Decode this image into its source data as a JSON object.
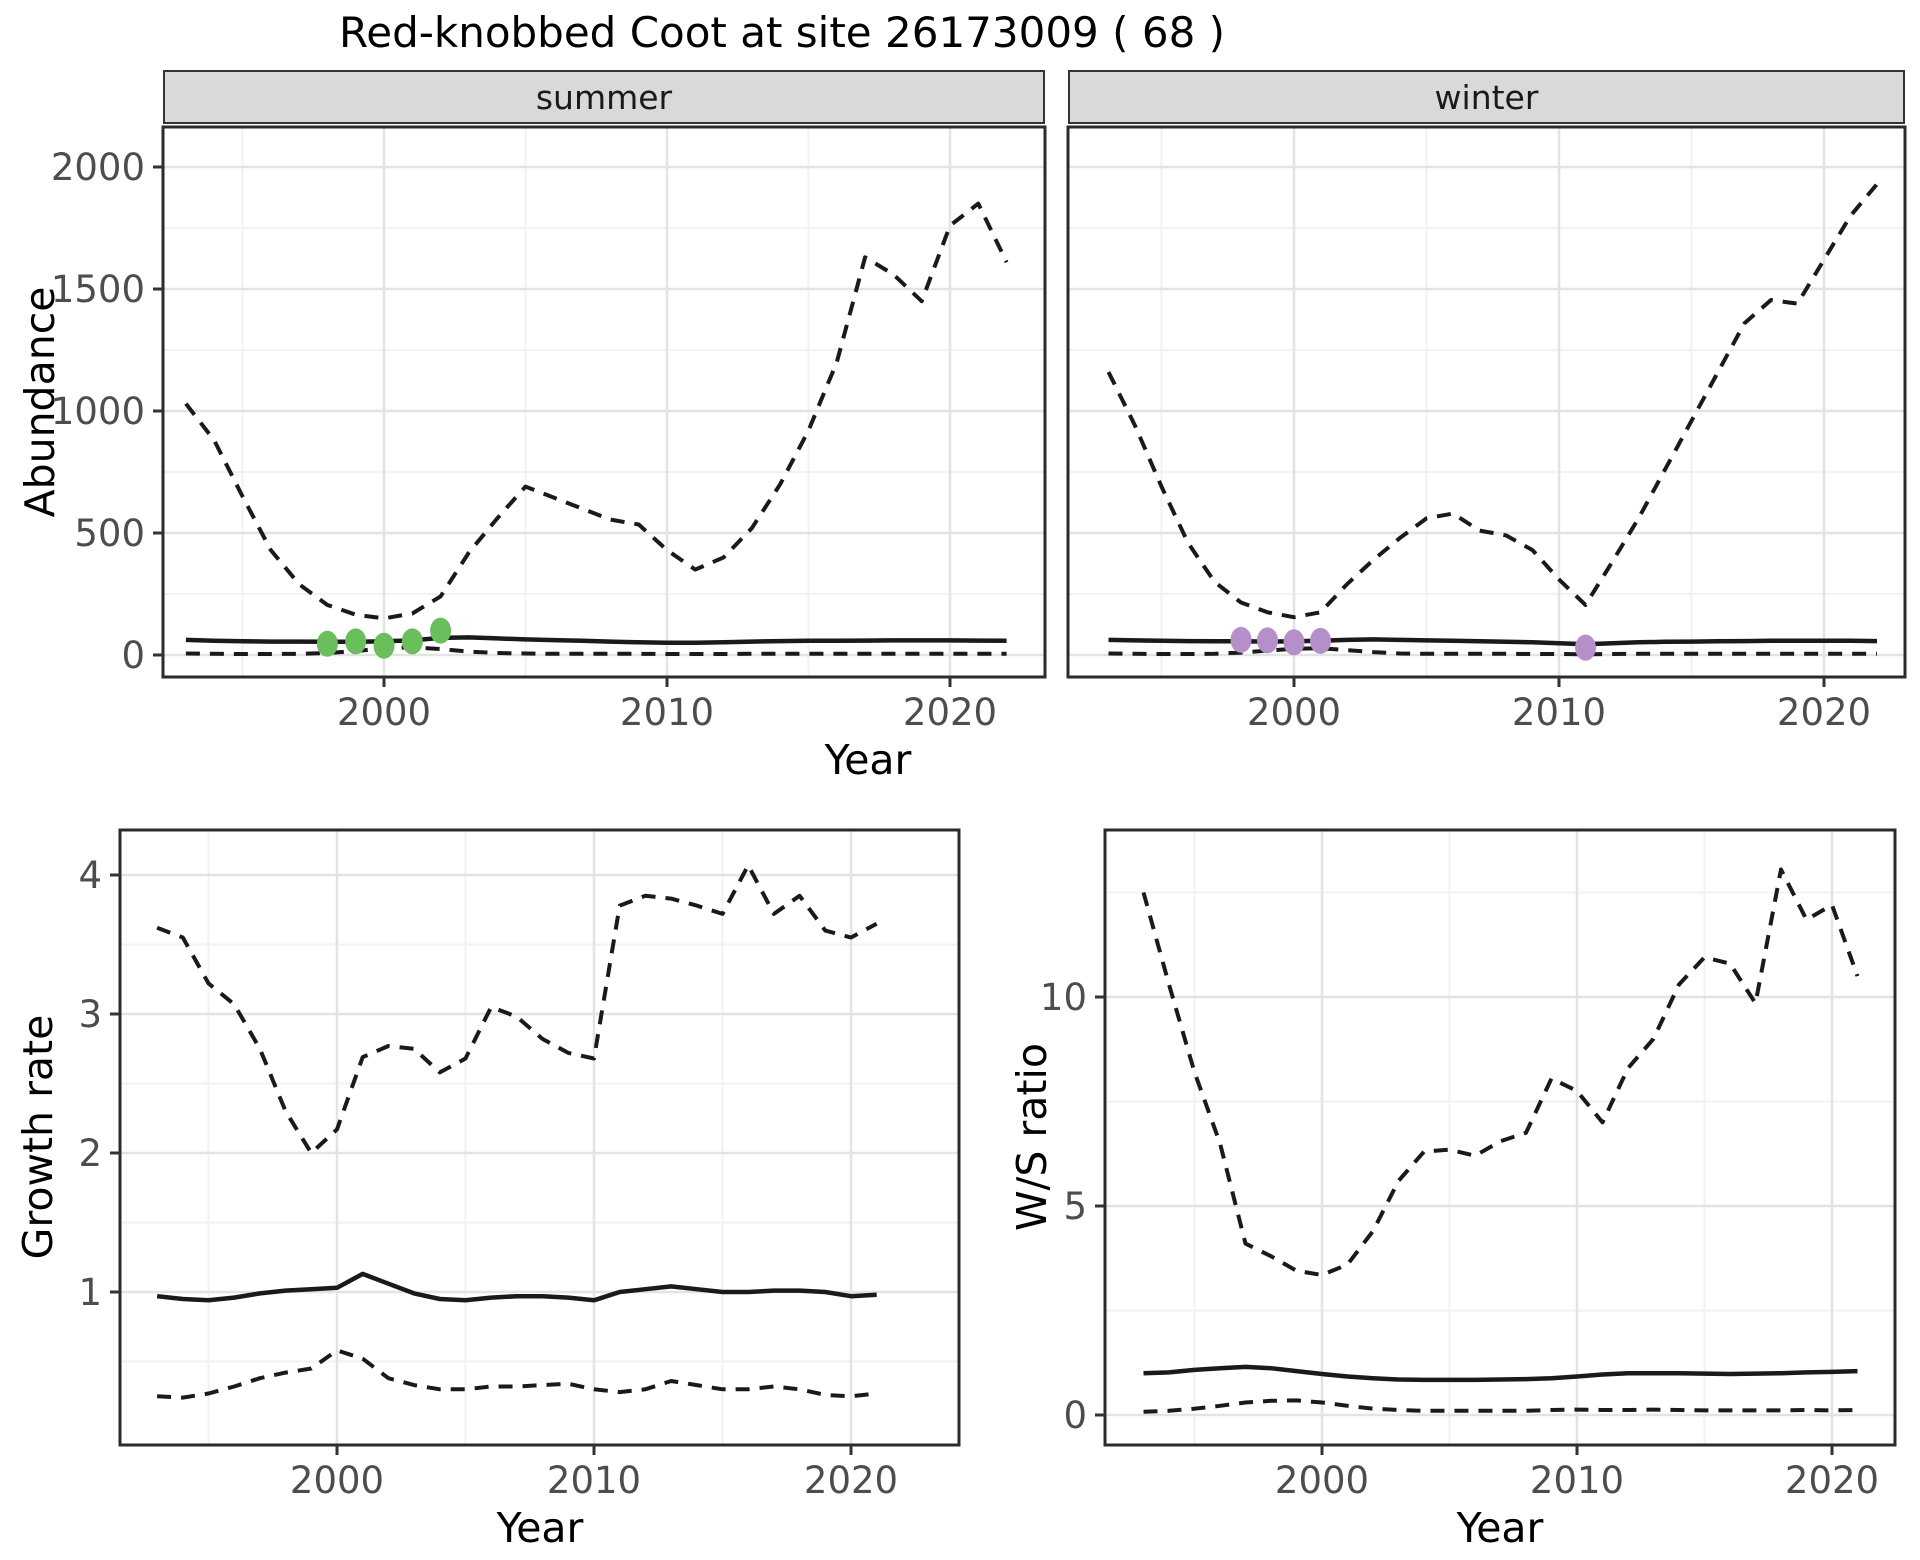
{
  "title": "Red-knobbed Coot at site 26173009 ( 68 )",
  "colors": {
    "summer_points": "#6BBE5C",
    "winter_points": "#B58FC9",
    "line": "#1a1a1a",
    "axis_text": "#4D4D4D",
    "strip_bg": "#D9D9D9",
    "panel_border": "#2B2B2B",
    "grid_major": "#E3E3E3",
    "grid_minor": "#F2F2F2"
  },
  "chart_data": [
    {
      "type": "line",
      "facet": "summer",
      "xlabel": "Year",
      "ylabel": "Abundance",
      "x": [
        1993,
        1994,
        1995,
        1996,
        1997,
        1998,
        1999,
        2000,
        2001,
        2002,
        2003,
        2004,
        2005,
        2006,
        2007,
        2008,
        2009,
        2010,
        2011,
        2012,
        2013,
        2014,
        2015,
        2016,
        2017,
        2018,
        2019,
        2020,
        2021,
        2022
      ],
      "series": [
        {
          "name": "upper-ci",
          "style": "dashed",
          "values": [
            1030,
            880,
            650,
            430,
            290,
            205,
            165,
            150,
            170,
            240,
            420,
            560,
            690,
            645,
            600,
            555,
            535,
            430,
            350,
            400,
            520,
            700,
            920,
            1200,
            1630,
            1560,
            1450,
            1760,
            1850,
            1610
          ]
        },
        {
          "name": "median",
          "style": "solid",
          "values": [
            62,
            58,
            56,
            55,
            55,
            54,
            54,
            56,
            60,
            70,
            72,
            68,
            64,
            61,
            58,
            55,
            52,
            50,
            50,
            52,
            55,
            57,
            58,
            58,
            59,
            60,
            60,
            60,
            59,
            58
          ]
        },
        {
          "name": "lower-ci",
          "style": "dashed",
          "values": [
            6,
            5,
            4,
            4,
            5,
            8,
            16,
            28,
            32,
            24,
            14,
            8,
            6,
            5,
            5,
            5,
            5,
            4,
            4,
            4,
            5,
            5,
            5,
            5,
            5,
            5,
            5,
            5,
            5,
            5
          ]
        }
      ],
      "points": {
        "name": "summer-observations",
        "color": "#6BBE5C",
        "x": [
          1998,
          1999,
          2000,
          2001,
          2002
        ],
        "y": [
          46,
          56,
          38,
          56,
          100
        ]
      },
      "xaxis": {
        "ticks": [
          2000,
          2010,
          2020
        ],
        "labels": [
          "2000",
          "2010",
          "2020"
        ],
        "minor": [
          1995,
          2005,
          2015
        ],
        "range": [
          1992.2,
          2023.4
        ]
      },
      "yaxis": {
        "ticks": [
          0,
          500,
          1000,
          1500,
          2000
        ],
        "labels": [
          "0",
          "500",
          "1000",
          "1500",
          "2000"
        ],
        "minor": [
          250,
          750,
          1250,
          1750
        ],
        "range": [
          -90,
          2165
        ]
      }
    },
    {
      "type": "line",
      "facet": "winter",
      "xlabel": "Year",
      "ylabel": "Abundance",
      "x": [
        1993,
        1994,
        1995,
        1996,
        1997,
        1998,
        1999,
        2000,
        2001,
        2002,
        2003,
        2004,
        2005,
        2006,
        2007,
        2008,
        2009,
        2010,
        2011,
        2012,
        2013,
        2014,
        2015,
        2016,
        2017,
        2018,
        2019,
        2020,
        2021,
        2022
      ],
      "series": [
        {
          "name": "upper-ci",
          "style": "dashed",
          "values": [
            1160,
            940,
            690,
            460,
            300,
            215,
            175,
            155,
            175,
            290,
            390,
            480,
            560,
            580,
            510,
            490,
            430,
            310,
            205,
            380,
            560,
            760,
            960,
            1160,
            1360,
            1455,
            1440,
            1620,
            1800,
            1930
          ]
        },
        {
          "name": "median",
          "style": "solid",
          "values": [
            62,
            60,
            58,
            57,
            56,
            56,
            55,
            56,
            58,
            62,
            64,
            62,
            60,
            58,
            56,
            54,
            52,
            48,
            44,
            48,
            52,
            54,
            55,
            56,
            57,
            58,
            58,
            58,
            58,
            57
          ]
        },
        {
          "name": "lower-ci",
          "style": "dashed",
          "values": [
            6,
            5,
            4,
            4,
            5,
            10,
            18,
            26,
            28,
            20,
            12,
            6,
            5,
            5,
            5,
            5,
            4,
            4,
            3,
            4,
            5,
            5,
            5,
            5,
            5,
            5,
            5,
            5,
            5,
            5
          ]
        }
      ],
      "points": {
        "name": "winter-observations",
        "color": "#B58FC9",
        "x": [
          1998,
          1999,
          2000,
          2001,
          2011
        ],
        "y": [
          62,
          60,
          52,
          58,
          30
        ]
      },
      "xaxis": {
        "ticks": [
          2000,
          2010,
          2020
        ],
        "labels": [
          "2000",
          "2010",
          "2020"
        ],
        "minor": [
          1995,
          2005,
          2015
        ],
        "range": [
          1991.5,
          2023.1
        ]
      },
      "yaxis": {
        "ticks": [
          0,
          500,
          1000,
          1500,
          2000
        ],
        "labels": [
          "0",
          "500",
          "1000",
          "1500",
          "2000"
        ],
        "minor": [
          250,
          750,
          1250,
          1750
        ],
        "range": [
          -90,
          2165
        ]
      }
    },
    {
      "type": "line",
      "facet": "",
      "xlabel": "Year",
      "ylabel": "Growth rate",
      "x": [
        1993,
        1994,
        1995,
        1996,
        1997,
        1998,
        1999,
        2000,
        2001,
        2002,
        2003,
        2004,
        2005,
        2006,
        2007,
        2008,
        2009,
        2010,
        2011,
        2012,
        2013,
        2014,
        2015,
        2016,
        2017,
        2018,
        2019,
        2020,
        2021
      ],
      "series": [
        {
          "name": "upper-ci",
          "style": "dashed",
          "values": [
            3.62,
            3.55,
            3.22,
            3.07,
            2.75,
            2.3,
            2.0,
            2.17,
            2.69,
            2.77,
            2.75,
            2.58,
            2.68,
            3.05,
            2.98,
            2.82,
            2.72,
            2.68,
            3.78,
            3.85,
            3.83,
            3.78,
            3.72,
            4.07,
            3.72,
            3.85,
            3.6,
            3.55,
            3.65
          ]
        },
        {
          "name": "median",
          "style": "solid",
          "values": [
            0.97,
            0.95,
            0.94,
            0.96,
            0.99,
            1.01,
            1.02,
            1.03,
            1.13,
            1.06,
            0.99,
            0.95,
            0.94,
            0.96,
            0.97,
            0.97,
            0.96,
            0.94,
            1.0,
            1.02,
            1.04,
            1.02,
            1.0,
            1.0,
            1.01,
            1.01,
            1.0,
            0.97,
            0.98
          ]
        },
        {
          "name": "lower-ci",
          "style": "dashed",
          "values": [
            0.25,
            0.24,
            0.27,
            0.32,
            0.38,
            0.42,
            0.45,
            0.58,
            0.52,
            0.38,
            0.33,
            0.3,
            0.3,
            0.32,
            0.32,
            0.33,
            0.34,
            0.3,
            0.28,
            0.3,
            0.36,
            0.33,
            0.3,
            0.3,
            0.32,
            0.3,
            0.26,
            0.25,
            0.27
          ]
        }
      ],
      "points": null,
      "xaxis": {
        "ticks": [
          2000,
          2010,
          2020
        ],
        "labels": [
          "2000",
          "2010",
          "2020"
        ],
        "minor": [
          1995,
          2005,
          2015
        ],
        "range": [
          1991.6,
          2024.6
        ]
      },
      "yaxis": {
        "ticks": [
          1,
          2,
          3,
          4
        ],
        "labels": [
          "1",
          "2",
          "3",
          "4"
        ],
        "minor": [
          0.5,
          1.5,
          2.5,
          3.5
        ],
        "range": [
          -0.1,
          4.32
        ]
      }
    },
    {
      "type": "line",
      "facet": "",
      "xlabel": "Year",
      "ylabel": "W/S ratio",
      "x": [
        1993,
        1994,
        1995,
        1996,
        1997,
        1998,
        1999,
        2000,
        2001,
        2002,
        2003,
        2004,
        2005,
        2006,
        2007,
        2008,
        2009,
        2010,
        2011,
        2012,
        2013,
        2014,
        2015,
        2016,
        2017,
        2018,
        2019,
        2020,
        2021
      ],
      "series": [
        {
          "name": "upper-ci",
          "style": "dashed",
          "values": [
            12.5,
            10.3,
            8.2,
            6.5,
            4.1,
            3.8,
            3.45,
            3.35,
            3.6,
            4.4,
            5.6,
            6.3,
            6.35,
            6.2,
            6.55,
            6.75,
            8.05,
            7.75,
            7.0,
            8.3,
            9.0,
            10.3,
            10.95,
            10.8,
            9.85,
            13.05,
            11.85,
            12.2,
            10.5
          ]
        },
        {
          "name": "median",
          "style": "solid",
          "values": [
            1.0,
            1.02,
            1.08,
            1.12,
            1.15,
            1.12,
            1.05,
            0.98,
            0.92,
            0.88,
            0.85,
            0.84,
            0.84,
            0.84,
            0.85,
            0.86,
            0.88,
            0.92,
            0.97,
            1.0,
            1.0,
            1.0,
            0.99,
            0.98,
            0.99,
            1.0,
            1.02,
            1.03,
            1.05
          ]
        },
        {
          "name": "lower-ci",
          "style": "dashed",
          "values": [
            0.08,
            0.1,
            0.15,
            0.22,
            0.3,
            0.34,
            0.35,
            0.3,
            0.22,
            0.15,
            0.12,
            0.1,
            0.1,
            0.1,
            0.1,
            0.1,
            0.12,
            0.13,
            0.12,
            0.12,
            0.13,
            0.12,
            0.11,
            0.11,
            0.11,
            0.11,
            0.12,
            0.11,
            0.12
          ]
        }
      ],
      "points": null,
      "xaxis": {
        "ticks": [
          2000,
          2010,
          2020
        ],
        "labels": [
          "2000",
          "2010",
          "2020"
        ],
        "minor": [
          1995,
          2005,
          2015
        ],
        "range": [
          1991.5,
          2023.5
        ]
      },
      "yaxis": {
        "ticks": [
          0,
          5,
          10
        ],
        "labels": [
          "0",
          "5",
          "10"
        ],
        "minor": [
          2.5,
          7.5,
          12.5
        ],
        "range": [
          -0.7,
          14.0
        ]
      }
    }
  ]
}
